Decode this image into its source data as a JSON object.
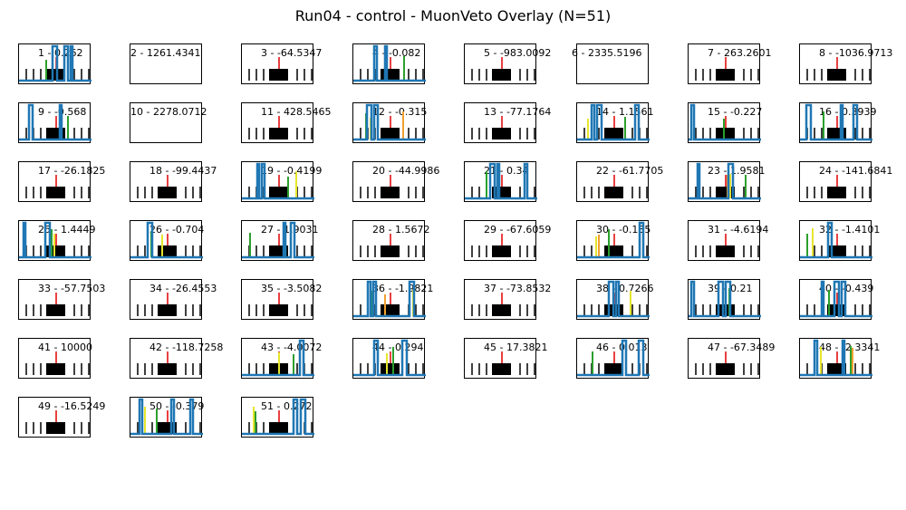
{
  "figure": {
    "title": "Run04 - control - MuonVeto Overlay (N=51)"
  },
  "chart_data": {
    "type": "grid-of-waveform-panels",
    "title": "Run04 - control - MuonVeto Overlay (N=51)",
    "colors": {
      "trace": "#1f77b4",
      "marker_red": "#e00000",
      "marker_green": "#2ca02c",
      "marker_yellow": "#e6e62e",
      "marker_orange": "#f0a030",
      "box": "#000000"
    },
    "panels": [
      {
        "id": 1,
        "label": "1 - 0.262",
        "trace": "full"
      },
      {
        "id": 2,
        "label": "2 - 1261.4341",
        "trace": "none"
      },
      {
        "id": 3,
        "label": "3 - -64.5347",
        "trace": "ticks"
      },
      {
        "id": 4,
        "label": "4 - -0.082",
        "trace": "full"
      },
      {
        "id": 5,
        "label": "5 - -983.0092",
        "trace": "ticks"
      },
      {
        "id": 6,
        "label": "6 - 2335.5196",
        "trace": "none"
      },
      {
        "id": 7,
        "label": "7 - 263.2601",
        "trace": "ticks"
      },
      {
        "id": 8,
        "label": "8 - -1036.9713",
        "trace": "ticks"
      },
      {
        "id": 9,
        "label": "9 - -0.568",
        "trace": "full"
      },
      {
        "id": 10,
        "label": "10 - 2278.0712",
        "trace": "none"
      },
      {
        "id": 11,
        "label": "11 - 428.5465",
        "trace": "ticks"
      },
      {
        "id": 12,
        "label": "12 - -0.315",
        "trace": "full"
      },
      {
        "id": 13,
        "label": "13 - -77.1764",
        "trace": "ticks"
      },
      {
        "id": 14,
        "label": "14 - 1.1561",
        "trace": "full"
      },
      {
        "id": 15,
        "label": "15 - -0.227",
        "trace": "full"
      },
      {
        "id": 16,
        "label": "16 - 0.3939",
        "trace": "full"
      },
      {
        "id": 17,
        "label": "17 - -26.1825",
        "trace": "ticks"
      },
      {
        "id": 18,
        "label": "18 - -99.4437",
        "trace": "ticks"
      },
      {
        "id": 19,
        "label": "19 - -0.4199",
        "trace": "full"
      },
      {
        "id": 20,
        "label": "20 - -44.9986",
        "trace": "ticks"
      },
      {
        "id": 21,
        "label": "21 - 0.34",
        "trace": "full"
      },
      {
        "id": 22,
        "label": "22 - -61.7705",
        "trace": "ticks"
      },
      {
        "id": 23,
        "label": "23 - 1.9581",
        "trace": "full"
      },
      {
        "id": 24,
        "label": "24 - -141.6841",
        "trace": "ticks"
      },
      {
        "id": 25,
        "label": "25 - 1.4449",
        "trace": "full"
      },
      {
        "id": 26,
        "label": "26 - -0.704",
        "trace": "full"
      },
      {
        "id": 27,
        "label": "27 - 1.9031",
        "trace": "full"
      },
      {
        "id": 28,
        "label": "28 - 1.5672",
        "trace": "ticks"
      },
      {
        "id": 29,
        "label": "29 - -67.6059",
        "trace": "ticks"
      },
      {
        "id": 30,
        "label": "30 - -0.135",
        "trace": "full"
      },
      {
        "id": 31,
        "label": "31 - -4.6194",
        "trace": "ticks"
      },
      {
        "id": 32,
        "label": "32 - -1.4101",
        "trace": "full"
      },
      {
        "id": 33,
        "label": "33 - -57.7503",
        "trace": "ticks"
      },
      {
        "id": 34,
        "label": "34 - -26.4553",
        "trace": "ticks"
      },
      {
        "id": 35,
        "label": "35 - -3.5082",
        "trace": "ticks"
      },
      {
        "id": 36,
        "label": "36 - -1.9821",
        "trace": "full"
      },
      {
        "id": 37,
        "label": "37 - -73.8532",
        "trace": "ticks"
      },
      {
        "id": 38,
        "label": "38 - 0.7266",
        "trace": "full"
      },
      {
        "id": 39,
        "label": "39 - 0.21",
        "trace": "full"
      },
      {
        "id": 40,
        "label": "40 - -0.439",
        "trace": "full"
      },
      {
        "id": 41,
        "label": "41 - 10000",
        "trace": "ticks"
      },
      {
        "id": 42,
        "label": "42 - -118.7258",
        "trace": "ticks"
      },
      {
        "id": 43,
        "label": "43 - -4.0072",
        "trace": "full"
      },
      {
        "id": 44,
        "label": "44 - 0.294",
        "trace": "full"
      },
      {
        "id": 45,
        "label": "45 - 17.3821",
        "trace": "ticks"
      },
      {
        "id": 46,
        "label": "46 - 0.013",
        "trace": "full"
      },
      {
        "id": 47,
        "label": "47 - -67.3489",
        "trace": "ticks"
      },
      {
        "id": 48,
        "label": "48 - -2.3341",
        "trace": "full"
      },
      {
        "id": 49,
        "label": "49 - -16.5249",
        "trace": "ticks"
      },
      {
        "id": 50,
        "label": "50 - -0.379",
        "trace": "full"
      },
      {
        "id": 51,
        "label": "51 - 0.272",
        "trace": "full"
      }
    ]
  }
}
